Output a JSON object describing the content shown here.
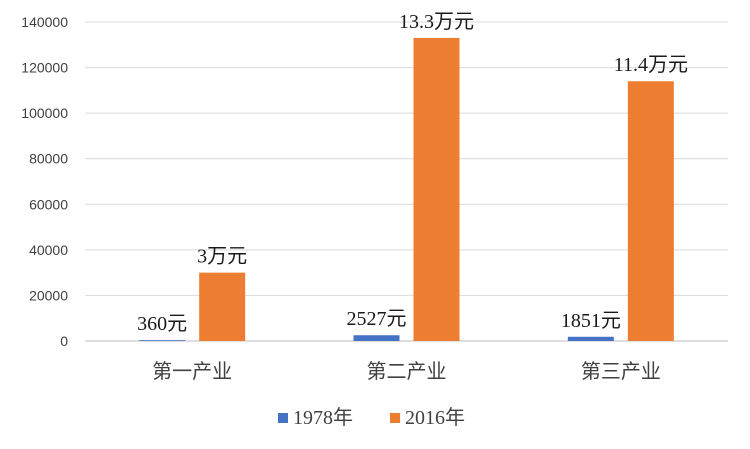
{
  "chart_data": {
    "type": "bar",
    "title": "",
    "xlabel": "",
    "ylabel": "",
    "categories": [
      "第一产业",
      "第二产业",
      "第三产业"
    ],
    "series": [
      {
        "name": "1978年",
        "color": "#4472C4",
        "values": [
          360,
          2527,
          1851
        ],
        "labels": [
          "360元",
          "2527元",
          "1851元"
        ]
      },
      {
        "name": "2016年",
        "color": "#ED7D31",
        "values": [
          30000,
          133000,
          114000
        ],
        "labels": [
          "3万元",
          "13.3万元",
          "11.4万元"
        ]
      }
    ],
    "ylim": [
      0,
      140000
    ],
    "yticks": [
      "0",
      "20000",
      "40000",
      "60000",
      "80000",
      "100000",
      "120000",
      "140000"
    ],
    "grid": true,
    "legend_position": "bottom"
  }
}
